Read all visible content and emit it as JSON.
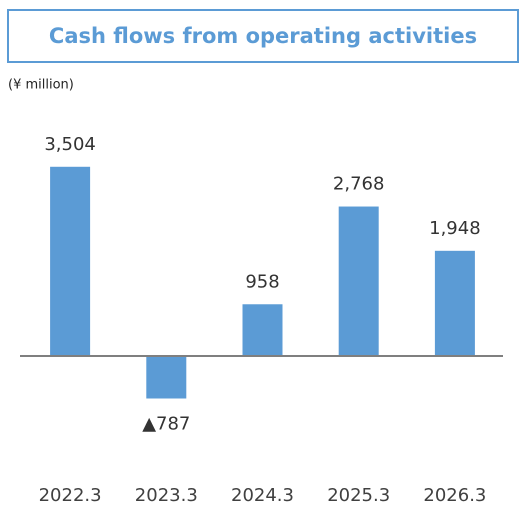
{
  "chart_data": {
    "type": "bar",
    "title": "Cash flows from operating activities",
    "unit_label": "(¥ million)",
    "categories": [
      "2022.3",
      "2023.3",
      "2024.3",
      "2025.3",
      "2026.3"
    ],
    "values": [
      3504,
      -787,
      958,
      2768,
      1948
    ],
    "value_labels": [
      "3,504",
      "▲787",
      "958",
      "2,768",
      "1,948"
    ],
    "color": "#5b9bd5",
    "ylim": [
      -2000,
      4500
    ],
    "grid": false
  }
}
